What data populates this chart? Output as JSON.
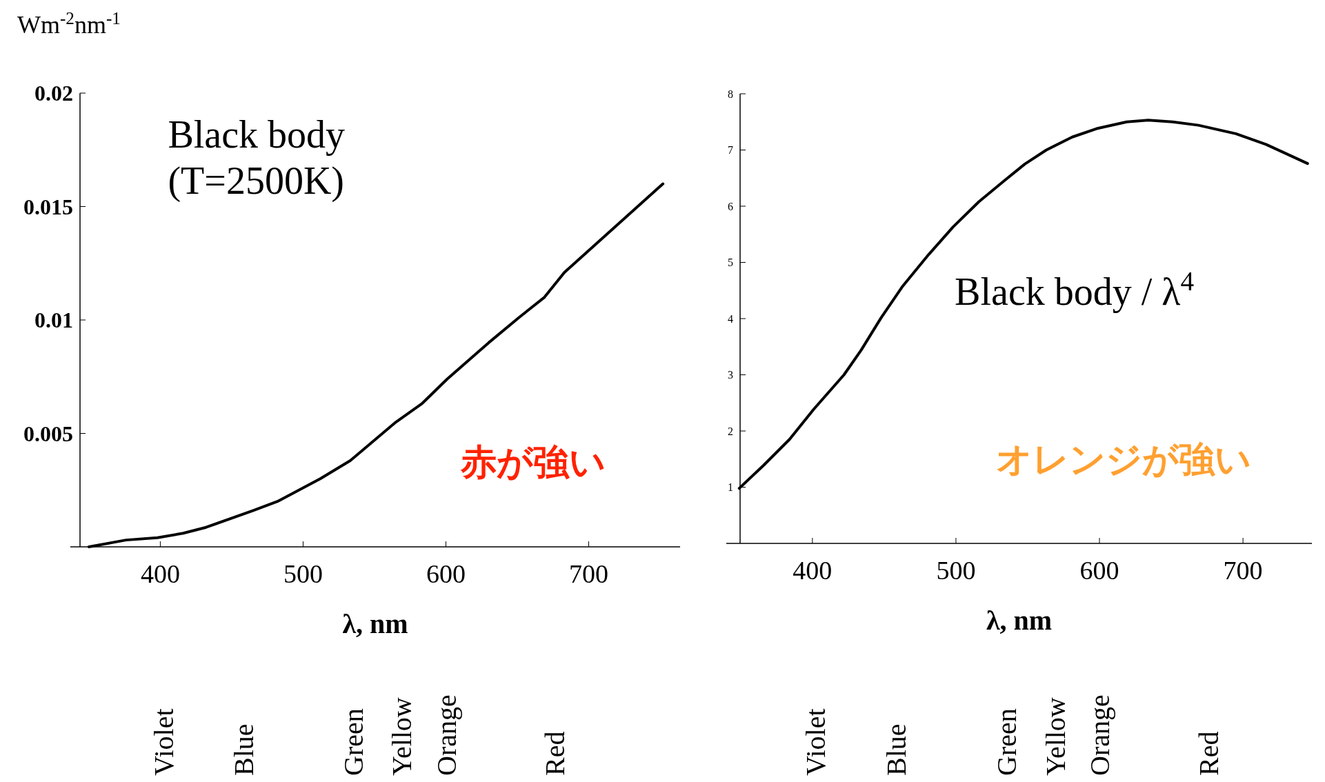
{
  "chart_data": [
    {
      "type": "line",
      "ylabel": "Wm$^{-2}$nm$^{-1}$",
      "xlabel": "λ,  nm",
      "xlim": [
        337,
        764
      ],
      "ylim": [
        0,
        0.02
      ],
      "xticks": [
        400,
        500,
        600,
        700
      ],
      "yticks": [
        0.005,
        0.01,
        0.015,
        0.02
      ],
      "series": [
        {
          "color": "#000000",
          "x": [
            350,
            376,
            398,
            416,
            432,
            465,
            482,
            512,
            533,
            565,
            583,
            601,
            630,
            651,
            669,
            683,
            752
          ],
          "values": [
            0,
            0.0003,
            0.0004,
            0.0006,
            0.00086,
            0.0016,
            0.002,
            0.003,
            0.0038,
            0.0055,
            0.0063,
            0.0074,
            0.009,
            0.0101,
            0.011,
            0.0121,
            0.016
          ]
        }
      ],
      "annotations": [
        "Black body\n(T=2500K)",
        "赤が強い",
        "Violet",
        "Blue",
        "Green",
        "Yellow",
        "Orange",
        "Red"
      ]
    },
    {
      "type": "line",
      "xlabel": "λ,  nm",
      "xlim": [
        340,
        748
      ],
      "ylim": [
        0,
        8
      ],
      "xticks": [
        400,
        500,
        600,
        700
      ],
      "yticks": [
        1,
        2,
        3,
        4,
        5,
        6,
        7,
        8
      ],
      "series": [
        {
          "color": "#000000",
          "x": [
            349,
            366,
            384,
            401,
            422,
            434,
            448,
            463,
            481,
            498,
            516,
            534,
            548,
            563,
            581,
            598,
            619,
            634,
            651,
            669,
            695,
            716,
            745
          ],
          "values": [
            0.98,
            1.39,
            1.85,
            2.39,
            3.0,
            3.44,
            4.02,
            4.58,
            5.14,
            5.63,
            6.08,
            6.46,
            6.75,
            7.0,
            7.23,
            7.38,
            7.5,
            7.53,
            7.5,
            7.44,
            7.29,
            7.1,
            6.76
          ]
        }
      ],
      "annotations": [
        "Black body / λ$^{4}$",
        "オレンジが強い",
        "Violet",
        "Blue",
        "Green",
        "Yellow",
        "Orange",
        "Red"
      ]
    }
  ]
}
